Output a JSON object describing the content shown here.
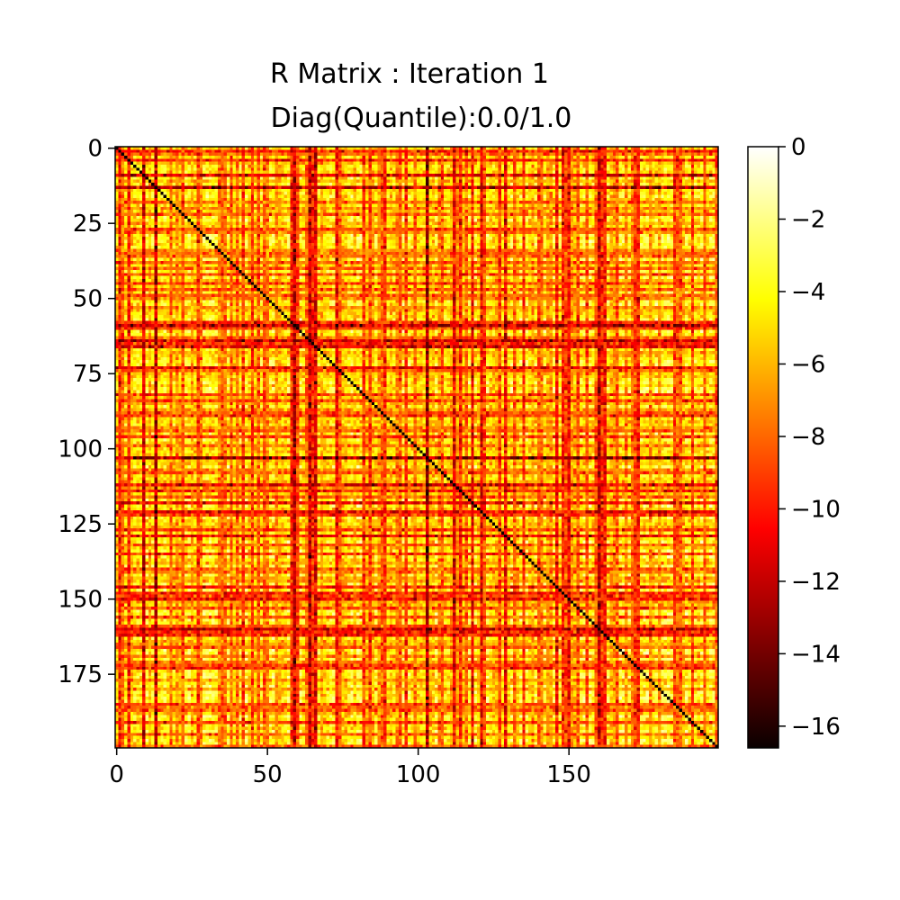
{
  "chart_data": {
    "type": "heatmap",
    "title_lines": [
      "R Matrix : Iteration 1",
      "Diag(Quantile):0.0/1.0"
    ],
    "xlabel": "",
    "ylabel": "",
    "n_rows": 200,
    "n_cols": 200,
    "x_ticks": [
      0,
      50,
      100,
      150
    ],
    "y_ticks": [
      0,
      25,
      50,
      75,
      100,
      125,
      150,
      175
    ],
    "colorbar": {
      "min": -16.6,
      "max": 0,
      "ticks": [
        0,
        -2,
        -4,
        -6,
        -8,
        -10,
        -12,
        -14,
        -16
      ],
      "tick_labels": [
        "0",
        "−2",
        "−4",
        "−6",
        "−8",
        "−10",
        "−12",
        "−14",
        "−16"
      ],
      "colormap": "hot",
      "colormap_stops": [
        "#0a0000",
        "#ff0000",
        "#ffff00",
        "#ffffff"
      ]
    },
    "diagonal_value": -16.6,
    "typical_value_range": [
      -5,
      0
    ],
    "strong_index_bands": [
      {
        "index": 4,
        "value": -10
      },
      {
        "index": 22,
        "value": -8
      },
      {
        "index": 27,
        "value": -9
      },
      {
        "index": 38,
        "value": -8
      },
      {
        "index": 49,
        "value": -8
      },
      {
        "index": 58,
        "value": -10
      },
      {
        "index": 60,
        "value": -9
      },
      {
        "index": 64,
        "value": -13
      },
      {
        "index": 66,
        "value": -12
      },
      {
        "index": 74,
        "value": -8
      },
      {
        "index": 84,
        "value": -9
      },
      {
        "index": 88,
        "value": -8
      },
      {
        "index": 96,
        "value": -9
      },
      {
        "index": 108,
        "value": -8
      },
      {
        "index": 116,
        "value": -8
      },
      {
        "index": 122,
        "value": -9
      },
      {
        "index": 132,
        "value": -8
      },
      {
        "index": 140,
        "value": -8
      },
      {
        "index": 149,
        "value": -9
      },
      {
        "index": 156,
        "value": -8
      },
      {
        "index": 166,
        "value": -8
      },
      {
        "index": 172,
        "value": -9
      },
      {
        "index": 185,
        "value": -9
      },
      {
        "index": 187,
        "value": -8
      },
      {
        "index": 195,
        "value": -8
      }
    ]
  }
}
